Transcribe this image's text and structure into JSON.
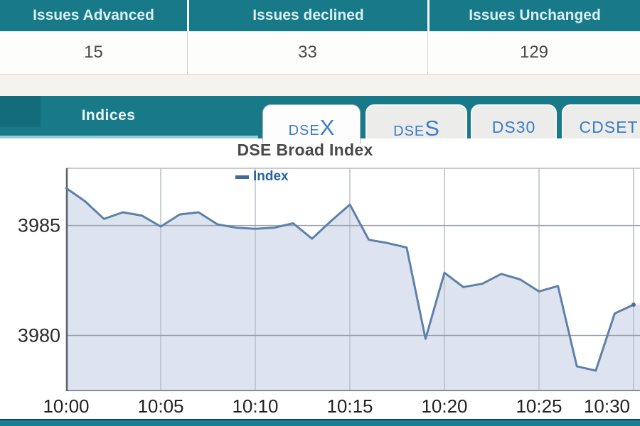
{
  "issues_table": {
    "columns": [
      {
        "label": "Issues Advanced",
        "value": "15"
      },
      {
        "label": "Issues declined",
        "value": "33"
      },
      {
        "label": "Issues Unchanged",
        "value": "129"
      }
    ]
  },
  "indices": {
    "title": "Indices",
    "tabs": [
      {
        "label": "DSEX",
        "small": "DSE",
        "large": "X",
        "active": true
      },
      {
        "label": "DSES",
        "small": "DSE",
        "large": "S",
        "active": false
      },
      {
        "label": "DS30",
        "active": false
      },
      {
        "label": "CDSET",
        "active": false
      }
    ]
  },
  "chart_data": {
    "type": "area",
    "title": "DSE Broad Index",
    "x": [
      "10:00",
      "10:01",
      "10:02",
      "10:03",
      "10:04",
      "10:05",
      "10:06",
      "10:07",
      "10:08",
      "10:09",
      "10:10",
      "10:11",
      "10:12",
      "10:13",
      "10:14",
      "10:15",
      "10:16",
      "10:17",
      "10:18",
      "10:19",
      "10:20",
      "10:21",
      "10:22",
      "10:23",
      "10:24",
      "10:25",
      "10:26",
      "10:27",
      "10:28",
      "10:29",
      "10:30"
    ],
    "series": [
      {
        "name": "Index",
        "values": [
          3986.7,
          3986.1,
          3985.3,
          3985.6,
          3985.45,
          3984.95,
          3985.5,
          3985.6,
          3985.05,
          3984.9,
          3984.85,
          3984.9,
          3985.1,
          3984.4,
          3985.2,
          3985.95,
          3984.35,
          3984.2,
          3984.0,
          3979.85,
          3982.85,
          3982.2,
          3982.35,
          3982.8,
          3982.55,
          3982.0,
          3982.25,
          3978.6,
          3978.4,
          3981.0,
          3981.4
        ]
      }
    ],
    "xticks": [
      "10:00",
      "10:05",
      "10:10",
      "10:15",
      "10:20",
      "10:25",
      "10:30"
    ],
    "yticks": [
      {
        "label": "3985",
        "value": 3985
      },
      {
        "label": "3980",
        "value": 3980
      }
    ],
    "ylim": [
      3977.5,
      3987.6
    ],
    "grid": true,
    "legend_position": "top-inside",
    "xlabel": "",
    "ylabel": ""
  },
  "colors": {
    "teal": "#187988",
    "teal_dark": "#146b7a",
    "underline": "#96ccd8",
    "tab_text": "#3c7cc4",
    "line": "#5e81a8",
    "fill": "#dee4ef",
    "legend_text": "#2a64a0",
    "footer_border": "#0b4b58"
  }
}
